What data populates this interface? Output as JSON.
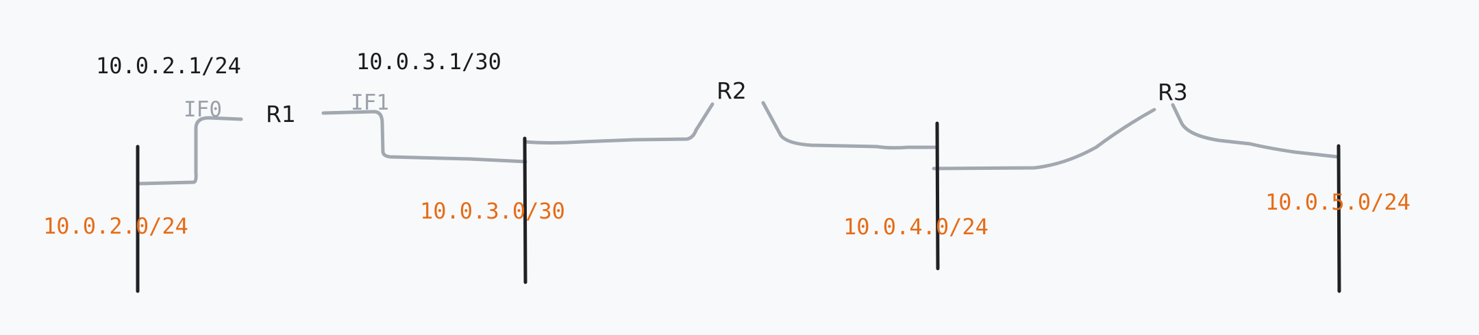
{
  "colors": {
    "background": "#f8f9fb",
    "segment_line": "#202124",
    "link_line": "#a2a8b0",
    "network_label": "#e56c17",
    "interface_label": "#9aa0a8",
    "text": "#1b1b1f"
  },
  "routers": {
    "r1": "R1",
    "r2": "R2",
    "r3": "R3"
  },
  "interfaces": {
    "if0": "IF0",
    "if1": "IF1"
  },
  "addresses": {
    "r1_if0": "10.0.2.1/24",
    "r1_if1": "10.0.3.1/30"
  },
  "networks": {
    "net_a": "10.0.2.0/24",
    "net_b": "10.0.3.0/30",
    "net_c": "10.0.4.0/24",
    "net_d": "10.0.5.0/24"
  }
}
